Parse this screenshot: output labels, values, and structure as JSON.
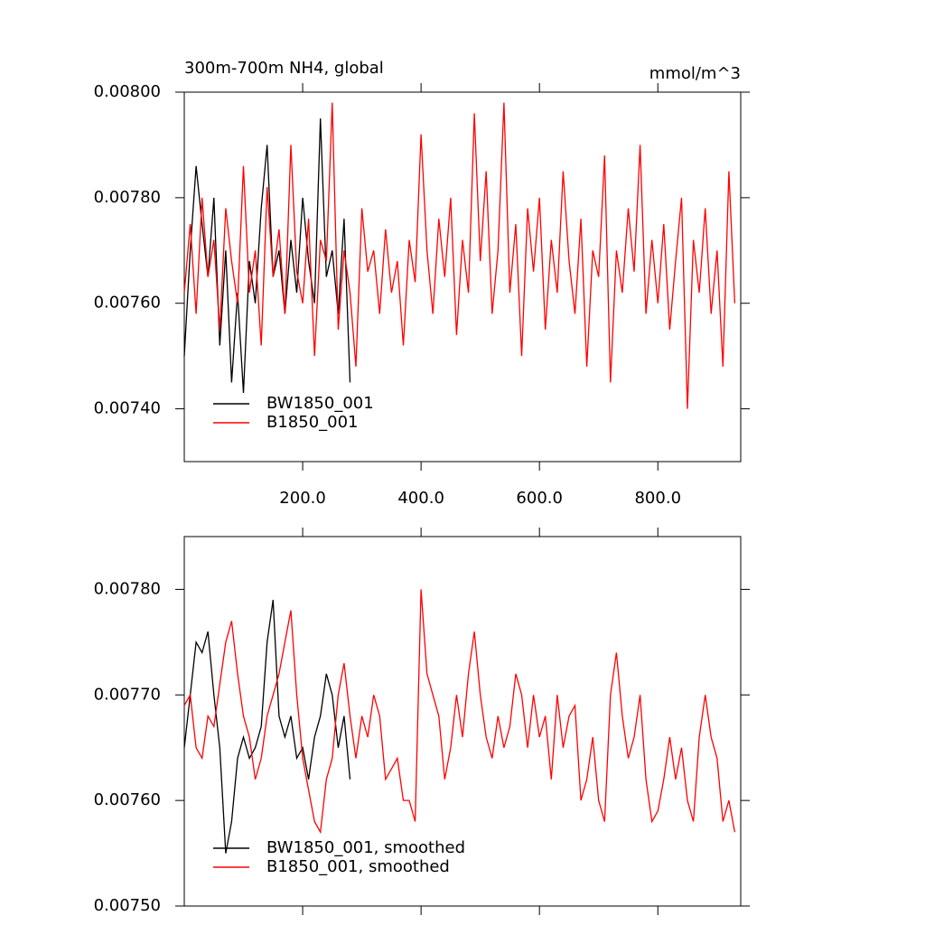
{
  "chart_data": [
    {
      "type": "line",
      "title": "300m-700m NH4, global",
      "units": "mmol/m^3",
      "xlim": [
        0,
        940
      ],
      "ylim": [
        0.0073,
        0.008
      ],
      "xticks": [
        {
          "value": 200,
          "label": "200.0"
        },
        {
          "value": 400,
          "label": "400.0"
        },
        {
          "value": 600,
          "label": "600.0"
        },
        {
          "value": 800,
          "label": "800.0"
        }
      ],
      "yticks": [
        {
          "value": 0.0074,
          "label": "0.00740"
        },
        {
          "value": 0.0076,
          "label": "0.00760"
        },
        {
          "value": 0.0078,
          "label": "0.00780"
        },
        {
          "value": 0.008,
          "label": "0.00800"
        }
      ],
      "legend": "lower left",
      "series": [
        {
          "name": "BW1850_001",
          "color": "#000000",
          "x": [
            0,
            10,
            20,
            30,
            40,
            50,
            60,
            70,
            80,
            90,
            100,
            110,
            120,
            130,
            140,
            150,
            160,
            170,
            180,
            190,
            200,
            210,
            220,
            230,
            240,
            250,
            260,
            270,
            280
          ],
          "values": [
            0.0075,
            0.0077,
            0.00786,
            0.00775,
            0.00765,
            0.0078,
            0.00752,
            0.0077,
            0.00745,
            0.00762,
            0.00743,
            0.00768,
            0.0076,
            0.00778,
            0.0079,
            0.00765,
            0.0077,
            0.00758,
            0.00772,
            0.00762,
            0.0078,
            0.00768,
            0.0076,
            0.00795,
            0.00765,
            0.0077,
            0.00758,
            0.00776,
            0.00745
          ]
        },
        {
          "name": "B1850_001",
          "color": "#ff0000",
          "x": [
            0,
            10,
            20,
            30,
            40,
            50,
            60,
            70,
            80,
            90,
            100,
            110,
            120,
            130,
            140,
            150,
            160,
            170,
            180,
            190,
            200,
            210,
            220,
            230,
            240,
            250,
            260,
            270,
            280,
            290,
            300,
            310,
            320,
            330,
            340,
            350,
            360,
            370,
            380,
            390,
            400,
            410,
            420,
            430,
            440,
            450,
            460,
            470,
            480,
            490,
            500,
            510,
            520,
            530,
            540,
            550,
            560,
            570,
            580,
            590,
            600,
            610,
            620,
            630,
            640,
            650,
            660,
            670,
            680,
            690,
            700,
            710,
            720,
            730,
            740,
            750,
            760,
            770,
            780,
            790,
            800,
            810,
            820,
            830,
            840,
            850,
            860,
            870,
            880,
            890,
            900,
            910,
            920,
            930
          ],
          "values": [
            0.00762,
            0.00775,
            0.00758,
            0.0078,
            0.00765,
            0.00772,
            0.00755,
            0.00778,
            0.00768,
            0.0076,
            0.00786,
            0.00762,
            0.0077,
            0.00752,
            0.00782,
            0.00765,
            0.00774,
            0.00758,
            0.0079,
            0.00766,
            0.0076,
            0.00776,
            0.0075,
            0.00772,
            0.00768,
            0.00798,
            0.00755,
            0.0077,
            0.00762,
            0.00748,
            0.00778,
            0.00766,
            0.0077,
            0.00758,
            0.00774,
            0.00762,
            0.00768,
            0.00752,
            0.00772,
            0.00764,
            0.00792,
            0.0077,
            0.00758,
            0.00776,
            0.00765,
            0.0078,
            0.00754,
            0.00772,
            0.00762,
            0.00796,
            0.00768,
            0.00785,
            0.00758,
            0.0077,
            0.00798,
            0.00762,
            0.00775,
            0.0075,
            0.00778,
            0.00766,
            0.0078,
            0.00755,
            0.00772,
            0.00762,
            0.00785,
            0.00768,
            0.00758,
            0.00776,
            0.00748,
            0.0077,
            0.00765,
            0.00788,
            0.00745,
            0.0077,
            0.00762,
            0.00778,
            0.00766,
            0.0079,
            0.00758,
            0.00772,
            0.0076,
            0.00775,
            0.00755,
            0.00768,
            0.0078,
            0.0074,
            0.00772,
            0.00762,
            0.00778,
            0.00758,
            0.0077,
            0.00748,
            0.00785,
            0.0076
          ]
        }
      ]
    },
    {
      "type": "line",
      "xlim": [
        0,
        940
      ],
      "ylim": [
        0.0075,
        0.00785
      ],
      "xticks": [
        200,
        400,
        600,
        800
      ],
      "xtick_labels": false,
      "yticks": [
        {
          "value": 0.0075,
          "label": "0.00750"
        },
        {
          "value": 0.0076,
          "label": "0.00760"
        },
        {
          "value": 0.0077,
          "label": "0.00770"
        },
        {
          "value": 0.0078,
          "label": "0.00780"
        }
      ],
      "legend": "lower left",
      "series": [
        {
          "name": "BW1850_001, smoothed",
          "color": "#000000",
          "x": [
            0,
            10,
            20,
            30,
            40,
            50,
            60,
            70,
            80,
            90,
            100,
            110,
            120,
            130,
            140,
            150,
            160,
            170,
            180,
            190,
            200,
            210,
            220,
            230,
            240,
            250,
            260,
            270,
            280
          ],
          "values": [
            0.00765,
            0.0077,
            0.00775,
            0.00774,
            0.00776,
            0.0077,
            0.00765,
            0.00755,
            0.00758,
            0.00764,
            0.00766,
            0.00764,
            0.00765,
            0.00767,
            0.00775,
            0.00779,
            0.00768,
            0.00766,
            0.00768,
            0.00764,
            0.00765,
            0.00762,
            0.00766,
            0.00768,
            0.00772,
            0.0077,
            0.00765,
            0.00768,
            0.00762
          ]
        },
        {
          "name": "B1850_001, smoothed",
          "color": "#ff0000",
          "x": [
            0,
            10,
            20,
            30,
            40,
            50,
            60,
            70,
            80,
            90,
            100,
            110,
            120,
            130,
            140,
            150,
            160,
            170,
            180,
            190,
            200,
            210,
            220,
            230,
            240,
            250,
            260,
            270,
            280,
            290,
            300,
            310,
            320,
            330,
            340,
            350,
            360,
            370,
            380,
            390,
            400,
            410,
            420,
            430,
            440,
            450,
            460,
            470,
            480,
            490,
            500,
            510,
            520,
            530,
            540,
            550,
            560,
            570,
            580,
            590,
            600,
            610,
            620,
            630,
            640,
            650,
            660,
            670,
            680,
            690,
            700,
            710,
            720,
            730,
            740,
            750,
            760,
            770,
            780,
            790,
            800,
            810,
            820,
            830,
            840,
            850,
            860,
            870,
            880,
            890,
            900,
            910,
            920,
            930
          ],
          "values": [
            0.00769,
            0.0077,
            0.00765,
            0.00764,
            0.00768,
            0.00767,
            0.00771,
            0.00775,
            0.00777,
            0.00772,
            0.00768,
            0.00766,
            0.00762,
            0.00764,
            0.00768,
            0.0077,
            0.00772,
            0.00775,
            0.00778,
            0.0077,
            0.00764,
            0.00761,
            0.00758,
            0.00757,
            0.00762,
            0.00764,
            0.0077,
            0.00773,
            0.00768,
            0.00764,
            0.00768,
            0.00766,
            0.0077,
            0.00768,
            0.00762,
            0.00763,
            0.00764,
            0.0076,
            0.0076,
            0.00758,
            0.0078,
            0.00772,
            0.0077,
            0.00768,
            0.00762,
            0.00765,
            0.0077,
            0.00766,
            0.00772,
            0.00776,
            0.0077,
            0.00766,
            0.00764,
            0.00768,
            0.00765,
            0.00767,
            0.00772,
            0.0077,
            0.00765,
            0.0077,
            0.00766,
            0.00768,
            0.00762,
            0.0077,
            0.00765,
            0.00768,
            0.00769,
            0.0076,
            0.00762,
            0.00766,
            0.0076,
            0.00758,
            0.0077,
            0.00774,
            0.00768,
            0.00764,
            0.00766,
            0.0077,
            0.00762,
            0.00758,
            0.00759,
            0.00762,
            0.00766,
            0.00762,
            0.00765,
            0.0076,
            0.00758,
            0.00766,
            0.0077,
            0.00766,
            0.00764,
            0.00758,
            0.0076,
            0.00757
          ]
        }
      ]
    }
  ]
}
